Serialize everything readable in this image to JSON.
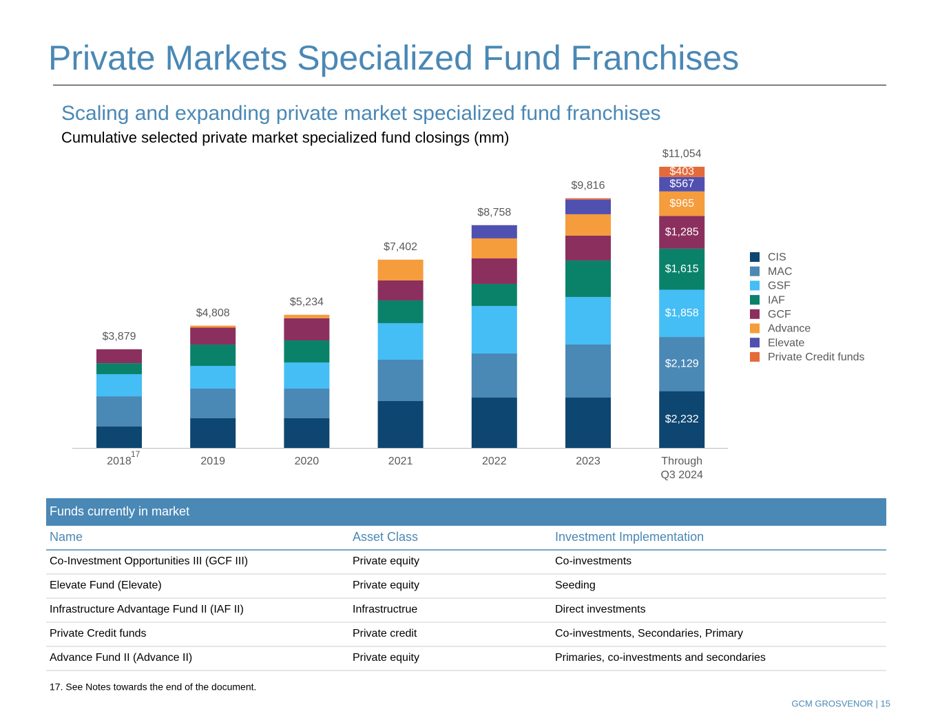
{
  "header": {
    "title": "Private Markets Specialized Fund Franchises"
  },
  "chart_data": {
    "type": "stacked_bar",
    "title": "Scaling and expanding private market specialized fund franchises",
    "subtitle": "Cumulative selected private market specialized fund closings (mm)",
    "categories": [
      "2018",
      "2019",
      "2020",
      "2021",
      "2022",
      "2023",
      "Through Q3 2024"
    ],
    "category_note": "17",
    "totals": [
      3879,
      4808,
      5234,
      7402,
      8758,
      9816,
      11054
    ],
    "total_labels": [
      "$3,879",
      "$4,808",
      "$5,234",
      "$7,402",
      "$8,758",
      "$9,816",
      "$11,054"
    ],
    "series": [
      {
        "name": "CIS",
        "color": "#0d4670",
        "values": [
          840,
          1165,
          1165,
          1843,
          1978,
          1978,
          2232
        ],
        "value_labels": [
          null,
          null,
          null,
          null,
          null,
          null,
          "$2,232"
        ]
      },
      {
        "name": "MAC",
        "color": "#4a88b5",
        "values": [
          1190,
          1165,
          1165,
          1626,
          1734,
          2087,
          2129
        ],
        "value_labels": [
          null,
          null,
          null,
          null,
          null,
          null,
          "$2,129"
        ]
      },
      {
        "name": "GSF",
        "color": "#45bdf5",
        "values": [
          870,
          895,
          1030,
          1436,
          1870,
          1870,
          1858
        ],
        "value_labels": [
          null,
          null,
          null,
          null,
          null,
          null,
          "$1,858"
        ]
      },
      {
        "name": "IAF",
        "color": "#0a826a",
        "values": [
          430,
          840,
          867,
          894,
          867,
          1436,
          1615
        ],
        "value_labels": [
          null,
          null,
          null,
          null,
          null,
          null,
          "$1,615"
        ]
      },
      {
        "name": "GCF",
        "color": "#8b2f5e",
        "values": [
          549,
          663,
          872,
          786,
          1003,
          976,
          1285
        ],
        "value_labels": [
          null,
          null,
          null,
          null,
          null,
          null,
          "$1,285"
        ]
      },
      {
        "name": "Advance",
        "color": "#f59c3c",
        "values": [
          0,
          80,
          135,
          817,
          786,
          840,
          965
        ],
        "value_labels": [
          null,
          null,
          null,
          null,
          null,
          null,
          "$965"
        ]
      },
      {
        "name": "Elevate",
        "color": "#5050b0",
        "values": [
          0,
          0,
          0,
          0,
          520,
          575,
          567
        ],
        "value_labels": [
          null,
          null,
          null,
          null,
          null,
          null,
          "$567"
        ]
      },
      {
        "name": "Private Credit funds",
        "color": "#e46a3a",
        "values": [
          0,
          0,
          0,
          0,
          0,
          54,
          403
        ],
        "value_labels": [
          null,
          null,
          null,
          null,
          null,
          null,
          "$403"
        ]
      }
    ]
  },
  "table": {
    "title": "Funds currently in market",
    "columns": [
      "Name",
      "Asset Class",
      "Investment Implementation"
    ],
    "rows": [
      [
        "Co-Investment Opportunities III (GCF III)",
        "Private equity",
        "Co-investments"
      ],
      [
        "Elevate Fund (Elevate)",
        "Private equity",
        "Seeding"
      ],
      [
        "Infrastructure Advantage Fund II (IAF II)",
        "Infrastructrue",
        "Direct investments"
      ],
      [
        "Private Credit funds",
        "Private credit",
        "Co-investments, Secondaries, Primary"
      ],
      [
        "Advance Fund II (Advance II)",
        "Private equity",
        "Primaries, co-investments and secondaries"
      ]
    ]
  },
  "footnote": "17. See Notes towards the end of the document.",
  "footer": "GCM GROSVENOR | 15"
}
